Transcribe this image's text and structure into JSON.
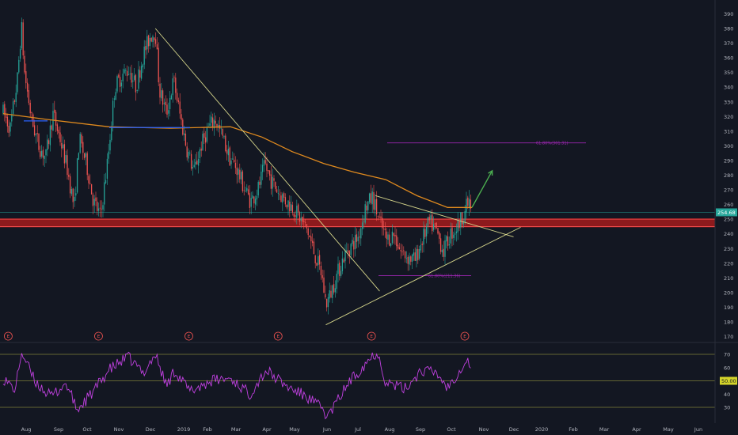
{
  "chart_data": [
    {
      "type": "candlestick",
      "title": "",
      "xlabel": "",
      "ylabel": "",
      "ylim": [
        172,
        397
      ],
      "x_ticks": [
        "Aug",
        "Sep",
        "Oct",
        "Nov",
        "Dec",
        "2019",
        "Feb",
        "Mar",
        "Apr",
        "May",
        "Jun",
        "Jul",
        "Aug",
        "Sep",
        "Oct",
        "Nov",
        "Dec",
        "2020",
        "Feb",
        "Mar",
        "Apr",
        "May",
        "Jun"
      ],
      "y_ticks": [
        390,
        380,
        370,
        360,
        350,
        340,
        330,
        320,
        310,
        300,
        290,
        280,
        270,
        260,
        250,
        240,
        230,
        220,
        210,
        200,
        190,
        180,
        170
      ],
      "last_price": "254.68",
      "grid": false,
      "colors": {
        "up": "#26a69a",
        "down": "#ef5350",
        "background": "#131722",
        "axis_text": "#b2b5be",
        "ma": "#e08a1e",
        "trend": "#d4d48a",
        "fib": "#9c27b0",
        "support": "#b71c1c",
        "arrow": "#4caf50",
        "rsi": "#c040e0"
      },
      "series": [
        {
          "kind": "price",
          "points": [
            [
              "2018-07-20",
              323
            ],
            [
              "2018-07-27",
              312
            ],
            [
              "2018-08-03",
              345
            ],
            [
              "2018-08-07",
              382
            ],
            [
              "2018-08-10",
              350
            ],
            [
              "2018-08-17",
              318
            ],
            [
              "2018-08-24",
              300
            ],
            [
              "2018-08-31",
              292
            ],
            [
              "2018-09-07",
              322
            ],
            [
              "2018-09-14",
              305
            ],
            [
              "2018-09-21",
              285
            ],
            [
              "2018-09-28",
              258
            ],
            [
              "2018-10-03",
              305
            ],
            [
              "2018-10-10",
              288
            ],
            [
              "2018-10-17",
              262
            ],
            [
              "2018-10-24",
              252
            ],
            [
              "2018-10-31",
              290
            ],
            [
              "2018-11-07",
              340
            ],
            [
              "2018-11-14",
              348
            ],
            [
              "2018-11-21",
              352
            ],
            [
              "2018-11-28",
              340
            ],
            [
              "2018-12-05",
              362
            ],
            [
              "2018-12-12",
              375
            ],
            [
              "2018-12-17",
              378
            ],
            [
              "2018-12-21",
              338
            ],
            [
              "2018-12-28",
              322
            ],
            [
              "2019-01-04",
              345
            ],
            [
              "2019-01-10",
              322
            ],
            [
              "2019-01-17",
              298
            ],
            [
              "2019-01-24",
              282
            ],
            [
              "2019-01-31",
              300
            ],
            [
              "2019-02-07",
              312
            ],
            [
              "2019-02-14",
              318
            ],
            [
              "2019-02-21",
              306
            ],
            [
              "2019-02-28",
              292
            ],
            [
              "2019-03-07",
              285
            ],
            [
              "2019-03-14",
              272
            ],
            [
              "2019-03-21",
              262
            ],
            [
              "2019-03-28",
              270
            ],
            [
              "2019-04-04",
              287
            ],
            [
              "2019-04-11",
              275
            ],
            [
              "2019-04-18",
              268
            ],
            [
              "2019-04-25",
              262
            ],
            [
              "2019-05-02",
              258
            ],
            [
              "2019-05-09",
              250
            ],
            [
              "2019-05-16",
              242
            ],
            [
              "2019-05-23",
              226
            ],
            [
              "2019-05-30",
              212
            ],
            [
              "2019-06-03",
              192
            ],
            [
              "2019-06-07",
              198
            ],
            [
              "2019-06-14",
              212
            ],
            [
              "2019-06-21",
              225
            ],
            [
              "2019-06-28",
              232
            ],
            [
              "2019-07-05",
              238
            ],
            [
              "2019-07-12",
              258
            ],
            [
              "2019-07-19",
              265
            ],
            [
              "2019-07-26",
              248
            ],
            [
              "2019-08-02",
              236
            ],
            [
              "2019-08-09",
              240
            ],
            [
              "2019-08-16",
              228
            ],
            [
              "2019-08-23",
              224
            ],
            [
              "2019-08-30",
              222
            ],
            [
              "2019-09-06",
              236
            ],
            [
              "2019-09-13",
              248
            ],
            [
              "2019-09-20",
              242
            ],
            [
              "2019-09-27",
              228
            ],
            [
              "2019-10-04",
              240
            ],
            [
              "2019-10-11",
              245
            ],
            [
              "2019-10-18",
              256
            ],
            [
              "2019-10-22",
              262
            ],
            [
              "2019-10-25",
              254.68
            ]
          ]
        },
        {
          "kind": "moving-average",
          "points": [
            [
              "2018-07-20",
              322
            ],
            [
              "2018-09-01",
              318
            ],
            [
              "2018-11-01",
              313
            ],
            [
              "2019-01-01",
              312
            ],
            [
              "2019-03-01",
              313
            ],
            [
              "2019-04-01",
              306
            ],
            [
              "2019-05-01",
              296
            ],
            [
              "2019-06-01",
              288
            ],
            [
              "2019-07-01",
              282
            ],
            [
              "2019-08-01",
              277
            ],
            [
              "2019-09-01",
              266
            ],
            [
              "2019-10-01",
              258
            ],
            [
              "2019-10-25",
              258
            ]
          ]
        },
        {
          "kind": "rsi",
          "ylim": [
            20,
            80
          ],
          "points": [
            [
              "2018-07-20",
              52
            ],
            [
              "2018-08-01",
              43
            ],
            [
              "2018-08-07",
              72
            ],
            [
              "2018-08-20",
              50
            ],
            [
              "2018-09-05",
              38
            ],
            [
              "2018-09-20",
              48
            ],
            [
              "2018-10-01",
              28
            ],
            [
              "2018-10-15",
              40
            ],
            [
              "2018-11-01",
              58
            ],
            [
              "2018-11-20",
              68
            ],
            [
              "2018-12-05",
              56
            ],
            [
              "2018-12-17",
              70
            ],
            [
              "2018-12-28",
              46
            ],
            [
              "2019-01-05",
              58
            ],
            [
              "2019-01-20",
              42
            ],
            [
              "2019-02-10",
              50
            ],
            [
              "2019-03-01",
              52
            ],
            [
              "2019-03-20",
              40
            ],
            [
              "2019-04-05",
              58
            ],
            [
              "2019-04-25",
              46
            ],
            [
              "2019-05-15",
              38
            ],
            [
              "2019-06-01",
              28
            ],
            [
              "2019-06-04",
              22
            ],
            [
              "2019-06-25",
              48
            ],
            [
              "2019-07-15",
              66
            ],
            [
              "2019-07-24",
              72
            ],
            [
              "2019-08-01",
              49
            ],
            [
              "2019-08-20",
              44
            ],
            [
              "2019-09-05",
              58
            ],
            [
              "2019-09-20",
              56
            ],
            [
              "2019-10-01",
              45
            ],
            [
              "2019-10-20",
              66
            ],
            [
              "2019-10-25",
              60
            ]
          ]
        }
      ],
      "annotations": {
        "fib_upper": "61.80%(301.31)",
        "fib_lower": "61.80%(211.36)",
        "fib_upper_price": 302,
        "fib_lower_price": 211.5,
        "support_zone": [
          245,
          250
        ],
        "earnings_marker": "E",
        "earnings_dates": [
          "2018-07-25",
          "2018-10-22",
          "2019-01-19",
          "2019-04-17",
          "2019-07-18",
          "2019-10-18"
        ],
        "trendlines": [
          {
            "from": [
              "2018-12-17",
              380
            ],
            "to": [
              "2019-07-26",
              201
            ]
          },
          {
            "from": [
              "2019-06-03",
              178
            ],
            "to": [
              "2019-12-12",
              244.5
            ]
          },
          {
            "from": [
              "2019-07-22",
              266
            ],
            "to": [
              "2019-12-05",
              238
            ]
          }
        ],
        "arrow": {
          "from": [
            "2019-10-25",
            258
          ],
          "to": [
            "2019-11-14",
            283
          ]
        }
      }
    },
    {
      "type": "line",
      "title": "",
      "indicator": "rsi",
      "ylim": [
        20,
        80
      ],
      "y_ticks": [
        70,
        60,
        50,
        40,
        30
      ],
      "highlighted_level": "50.00",
      "reference_lines": [
        70,
        50,
        30
      ]
    }
  ]
}
